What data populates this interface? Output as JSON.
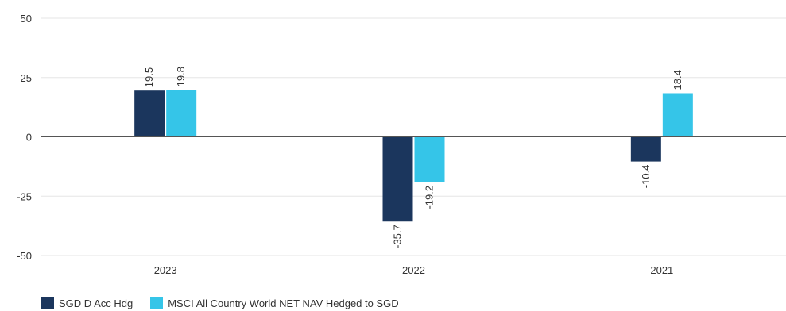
{
  "chart_data": {
    "type": "bar",
    "title": "",
    "xlabel": "",
    "ylabel": "",
    "categories": [
      "2023",
      "2022",
      "2021"
    ],
    "series": [
      {
        "name": "SGD D Acc Hdg",
        "values": [
          19.5,
          -35.7,
          -10.4
        ],
        "color": "#1b365d"
      },
      {
        "name": "MSCI All Country World NET NAV Hedged to SGD",
        "values": [
          19.8,
          -19.2,
          18.4
        ],
        "color": "#35c5e8"
      }
    ],
    "ylim": [
      -50,
      50
    ],
    "yticks": [
      50,
      25,
      0,
      -25,
      -50
    ],
    "grid": true,
    "legend_position": "bottom-left",
    "data_labels": true
  }
}
